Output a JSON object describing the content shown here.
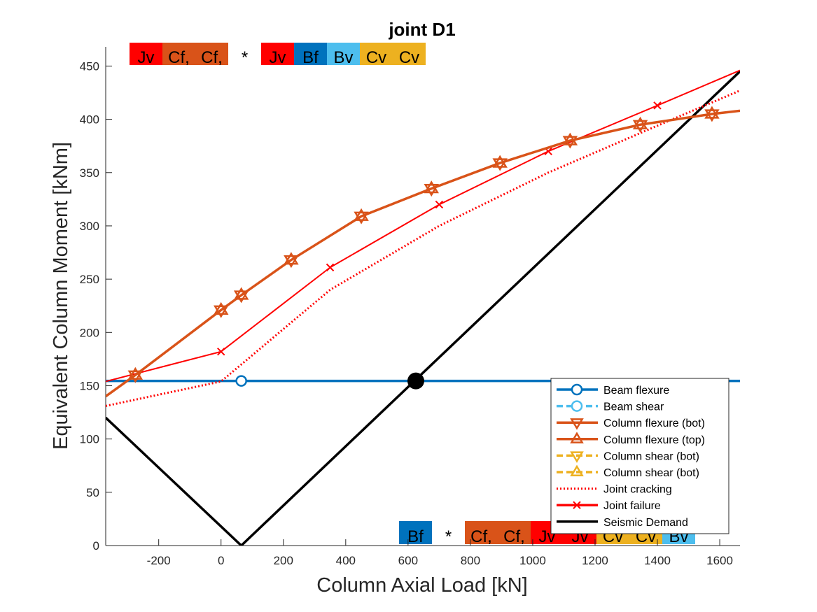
{
  "chart_data": {
    "type": "line",
    "title": "joint D1",
    "xlabel": "Column Axial Load [kN]",
    "ylabel": "Equivalent Column Moment [kNm]",
    "xlim": [
      -370,
      1665
    ],
    "ylim": [
      0,
      468
    ],
    "xticks": [
      -200,
      0,
      200,
      400,
      600,
      800,
      1000,
      1200,
      1400,
      1600
    ],
    "yticks": [
      0,
      50,
      100,
      150,
      200,
      250,
      300,
      350,
      400,
      450
    ],
    "grid": false,
    "legend_position": "bottom-right",
    "colors": {
      "beam_flexure": "#0072BD",
      "beam_shear": "#4DBEEE",
      "column_flexure": "#D95319",
      "column_shear": "#EDB120",
      "joint": "#FF0000",
      "demand": "#000000"
    },
    "series": [
      {
        "name": "Beam flexure",
        "style": "solid",
        "marker": "circle",
        "x": [
          -370,
          1665
        ],
        "y": [
          154.5,
          154.5
        ],
        "marker_points": [
          [
            65,
            154.5
          ]
        ]
      },
      {
        "name": "Beam shear",
        "style": "dashed",
        "marker": "circle",
        "x": [],
        "y": []
      },
      {
        "name": "Column flexure (bot)",
        "style": "solid",
        "marker": "triangle-down",
        "x": [
          -370,
          -275,
          0,
          65,
          225,
          450,
          675,
          895,
          1120,
          1345,
          1575,
          1665
        ],
        "y": [
          140,
          160,
          221,
          235,
          268,
          309,
          335,
          359,
          380,
          395,
          405,
          408
        ]
      },
      {
        "name": "Column flexure (top)",
        "style": "solid",
        "marker": "triangle-up",
        "x": [
          -370,
          -275,
          0,
          65,
          225,
          450,
          675,
          895,
          1120,
          1345,
          1575,
          1665
        ],
        "y": [
          140,
          160,
          221,
          235,
          268,
          309,
          335,
          359,
          380,
          395,
          405,
          408
        ]
      },
      {
        "name": "Column shear (bot)",
        "style": "dashed",
        "marker": "hourglass",
        "x": [],
        "y": []
      },
      {
        "name": "Column shear (bot)",
        "style": "dashed",
        "marker": "triangle-up",
        "x": [],
        "y": []
      },
      {
        "name": "Joint cracking",
        "style": "dotted",
        "marker": "none",
        "x": [
          -370,
          0,
          350,
          700,
          1050,
          1400,
          1665
        ],
        "y": [
          131,
          154,
          240,
          300,
          350,
          394,
          427
        ]
      },
      {
        "name": "Joint failure",
        "style": "solid",
        "marker": "x",
        "x": [
          -370,
          0,
          350,
          700,
          1050,
          1400,
          1665
        ],
        "y": [
          154,
          182,
          261,
          320,
          370,
          413,
          446
        ]
      },
      {
        "name": "Seismic Demand",
        "style": "solid",
        "marker": "none",
        "x": [
          -370,
          65,
          1665
        ],
        "y": [
          120,
          0,
          445
        ]
      }
    ],
    "demand_point": {
      "x": 625,
      "y": 154.5
    },
    "top_labels": [
      {
        "text": "Jv",
        "color": "#FF0000"
      },
      {
        "text": "Cf,",
        "color": "#D95319"
      },
      {
        "text": "Cf,",
        "color": "#D95319"
      },
      {
        "text": "*",
        "color": "#FFFFFF"
      },
      {
        "text": "Jv",
        "color": "#FF0000"
      },
      {
        "text": "Bf",
        "color": "#0072BD"
      },
      {
        "text": "Bv",
        "color": "#4DBEEE"
      },
      {
        "text": "Cv",
        "color": "#EDB120"
      },
      {
        "text": "Cv",
        "color": "#EDB120"
      }
    ],
    "bottom_labels": [
      {
        "text": "Bf",
        "color": "#0072BD"
      },
      {
        "text": "*",
        "color": "#FFFFFF"
      },
      {
        "text": "Cf,",
        "color": "#D95319"
      },
      {
        "text": "Cf,",
        "color": "#D95319"
      },
      {
        "text": "Jv",
        "color": "#FF0000"
      },
      {
        "text": "Jv",
        "color": "#FF0000"
      },
      {
        "text": "Cv",
        "color": "#EDB120"
      },
      {
        "text": "Cv",
        "color": "#EDB120"
      },
      {
        "text": "Bv",
        "color": "#4DBEEE"
      }
    ]
  }
}
